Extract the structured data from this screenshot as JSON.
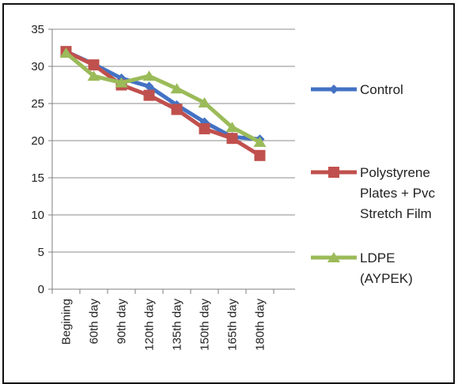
{
  "chart_data": {
    "type": "line",
    "categories": [
      "Begining",
      "60th day",
      "90th day",
      "120th day",
      "135th day",
      "150th day",
      "165th day",
      "180th day"
    ],
    "ylim": [
      0,
      35
    ],
    "yticks": [
      0,
      5,
      10,
      15,
      20,
      25,
      30,
      35
    ],
    "grid": "horizontal",
    "legend_position": "right",
    "series": [
      {
        "name": "Control",
        "color": "#4472c4",
        "marker": "diamond",
        "values": [
          32.0,
          30.3,
          28.4,
          27.3,
          24.8,
          22.5,
          20.5,
          20.2
        ]
      },
      {
        "name": "Polystyrene Plates + Pvc Stretch Film",
        "name_lines": [
          "Polystyrene",
          "Plates + Pvc",
          "Stretch Film"
        ],
        "color": "#c0504d",
        "marker": "square",
        "values": [
          32.0,
          30.2,
          27.5,
          26.1,
          24.2,
          21.6,
          20.3,
          18.0
        ]
      },
      {
        "name": "LDPE (AYPEK)",
        "name_lines": [
          "LDPE",
          "(AYPEK)"
        ],
        "color": "#9bbb59",
        "marker": "triangle",
        "values": [
          31.8,
          28.7,
          27.8,
          28.7,
          27.0,
          25.1,
          21.8,
          19.8
        ]
      }
    ]
  }
}
